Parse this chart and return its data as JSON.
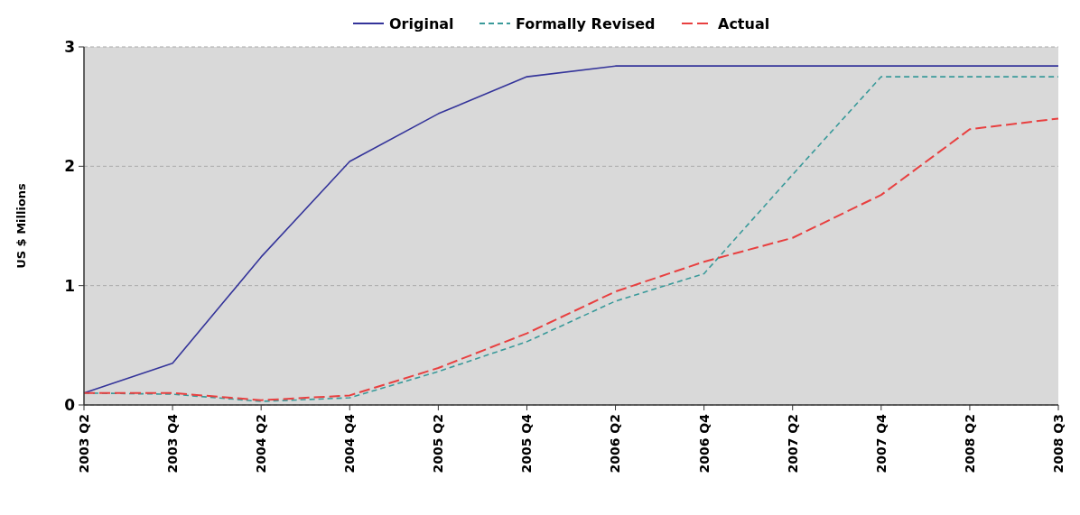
{
  "chart_data": {
    "type": "line",
    "ylabel": "US $ Millions",
    "categories": [
      "2003 Q2",
      "2003 Q4",
      "2004 Q2",
      "2004 Q4",
      "2005 Q2",
      "2005 Q4",
      "2006 Q2",
      "2006 Q4",
      "2007 Q2",
      "2007 Q4",
      "2008 Q2",
      "2008 Q3"
    ],
    "series": [
      {
        "name": "Original",
        "color": "#34349a",
        "line_style": "solid",
        "values": [
          0.1,
          0.35,
          1.24,
          2.04,
          2.44,
          2.75,
          2.84,
          2.84,
          2.84,
          2.84,
          2.84,
          2.84
        ]
      },
      {
        "name": "Formally Revised",
        "color": "#3a9a9a",
        "line_style": "dashed",
        "values": [
          0.1,
          0.09,
          0.03,
          0.06,
          0.28,
          0.53,
          0.87,
          1.1,
          1.93,
          2.75,
          2.75,
          2.75
        ]
      },
      {
        "name": "Actual",
        "color": "#e84040",
        "line_style": "dashed",
        "values": [
          0.1,
          0.1,
          0.04,
          0.08,
          0.31,
          0.6,
          0.95,
          1.2,
          1.4,
          1.76,
          2.31,
          2.4
        ]
      }
    ],
    "ylim": [
      0,
      3
    ],
    "yticks": [
      0,
      1,
      2,
      3
    ],
    "grid": "y",
    "legend": "top",
    "marker": "none"
  }
}
